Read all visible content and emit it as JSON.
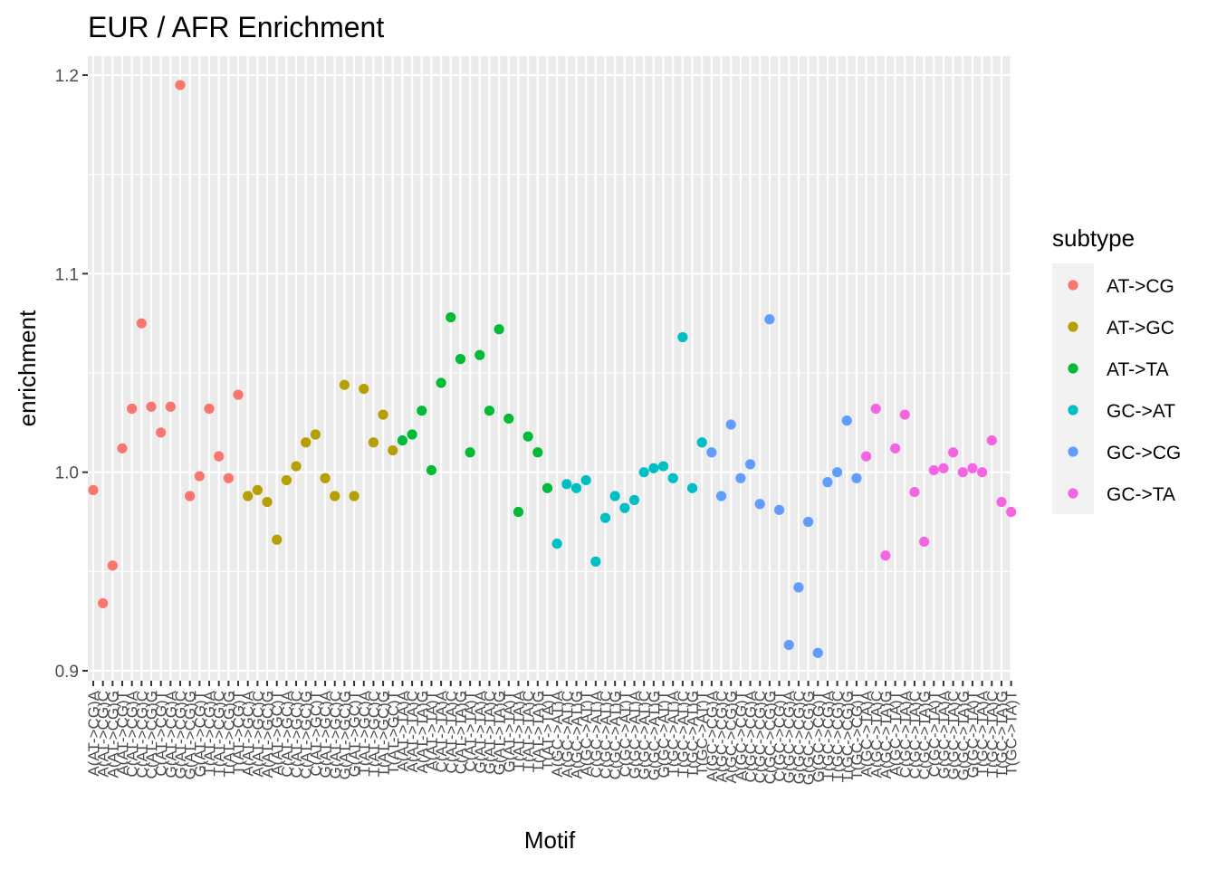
{
  "chart_data": {
    "type": "scatter",
    "title": "EUR / AFR Enrichment",
    "xlabel": "Motif",
    "ylabel": "enrichment",
    "ylim": [
      0.9,
      1.2
    ],
    "yticks": [
      "0.9",
      "1.0",
      "1.1",
      "1.2"
    ],
    "grid": true,
    "legend": {
      "title": "subtype",
      "placement": "right",
      "entries": [
        {
          "name": "AT->CG",
          "color": "#F8766D"
        },
        {
          "name": "AT->GC",
          "color": "#B79F00"
        },
        {
          "name": "AT->TA",
          "color": "#00BA38"
        },
        {
          "name": "GC->AT",
          "color": "#00BFC4"
        },
        {
          "name": "GC->CG",
          "color": "#619CFF"
        },
        {
          "name": "GC->TA",
          "color": "#F564E3"
        }
      ]
    },
    "series": [
      {
        "name": "AT->CG",
        "values": [
          0.991,
          0.934,
          0.953,
          1.012,
          1.032,
          1.075,
          1.033,
          1.02,
          1.033,
          1.195,
          0.988,
          0.998,
          1.032,
          1.008,
          0.997,
          1.039
        ]
      },
      {
        "name": "AT->GC",
        "values": [
          0.988,
          0.991,
          0.985,
          0.966,
          0.996,
          1.003,
          1.015,
          1.019,
          0.997,
          0.988,
          1.044,
          0.988,
          1.042,
          1.015,
          1.029,
          1.011
        ]
      },
      {
        "name": "AT->TA",
        "values": [
          1.016,
          1.019,
          1.031,
          1.001,
          1.045,
          1.078,
          1.057,
          1.01,
          1.059,
          1.031,
          1.072,
          1.027,
          0.98,
          1.018,
          1.01,
          0.992
        ]
      },
      {
        "name": "GC->AT",
        "values": [
          0.964,
          0.994,
          0.992,
          0.996,
          0.955,
          0.977,
          0.988,
          0.982,
          0.986,
          1.0,
          1.002,
          1.003,
          0.997,
          1.068,
          0.992,
          1.015
        ]
      },
      {
        "name": "GC->CG",
        "values": [
          1.01,
          0.988,
          1.024,
          0.997,
          1.004,
          0.984,
          1.077,
          0.981,
          0.913,
          0.942,
          0.975,
          0.909,
          0.995,
          1.0,
          1.026,
          0.997
        ]
      },
      {
        "name": "GC->TA",
        "values": [
          1.008,
          1.032,
          0.958,
          1.012,
          1.029,
          0.99,
          0.965,
          1.001,
          1.002,
          1.01,
          1.0,
          1.002,
          1.0,
          1.016,
          0.985,
          0.98
        ]
      }
    ],
    "x": [
      "A(AT->CG)A",
      "A(AT->CG)C",
      "A(AT->CG)G",
      "A(AT->CG)T",
      "C(AT->CG)A",
      "C(AT->CG)C",
      "C(AT->CG)G",
      "C(AT->CG)T",
      "G(AT->CG)A",
      "G(AT->CG)C",
      "G(AT->CG)G",
      "G(AT->CG)T",
      "T(AT->CG)A",
      "T(AT->CG)C",
      "T(AT->CG)G",
      "T(AT->CG)T",
      "A(AT->GC)A",
      "A(AT->GC)C",
      "A(AT->GC)G",
      "A(AT->GC)T",
      "C(AT->GC)A",
      "C(AT->GC)C",
      "C(AT->GC)G",
      "C(AT->GC)T",
      "G(AT->GC)A",
      "G(AT->GC)C",
      "G(AT->GC)G",
      "G(AT->GC)T",
      "T(AT->GC)A",
      "T(AT->GC)C",
      "T(AT->GC)G",
      "T(AT->GC)T",
      "A(AT->TA)A",
      "A(AT->TA)C",
      "A(AT->TA)G",
      "A(AT->TA)T",
      "C(AT->TA)A",
      "C(AT->TA)C",
      "C(AT->TA)G",
      "C(AT->TA)T",
      "G(AT->TA)A",
      "G(AT->TA)C",
      "G(AT->TA)G",
      "G(AT->TA)T",
      "T(AT->TA)A",
      "T(AT->TA)C",
      "T(AT->TA)G",
      "T(AT->TA)T",
      "A(GC->AT)A",
      "A(GC->AT)C",
      "A(GC->AT)G",
      "A(GC->AT)T",
      "C(GC->AT)A",
      "C(GC->AT)C",
      "C(GC->AT)G",
      "C(GC->AT)T",
      "G(GC->AT)A",
      "G(GC->AT)C",
      "G(GC->AT)G",
      "G(GC->AT)T",
      "T(GC->AT)A",
      "T(GC->AT)C",
      "T(GC->AT)G",
      "T(GC->AT)T",
      "A(GC->CG)A",
      "A(GC->CG)C",
      "A(GC->CG)G",
      "A(GC->CG)T",
      "C(GC->CG)A",
      "C(GC->CG)C",
      "C(GC->CG)G",
      "C(GC->CG)T",
      "G(GC->CG)A",
      "G(GC->CG)C",
      "G(GC->CG)G",
      "G(GC->CG)T",
      "T(GC->CG)A",
      "T(GC->CG)C",
      "T(GC->CG)G",
      "T(GC->CG)T",
      "A(GC->TA)A",
      "A(GC->TA)C",
      "A(GC->TA)G",
      "A(GC->TA)T",
      "C(GC->TA)A",
      "C(GC->TA)C",
      "C(GC->TA)G",
      "C(GC->TA)T",
      "G(GC->TA)A",
      "G(GC->TA)C",
      "G(GC->TA)G",
      "G(GC->TA)T",
      "T(GC->TA)A",
      "T(GC->TA)C",
      "T(GC->TA)G",
      "T(GC->TA)T"
    ]
  }
}
